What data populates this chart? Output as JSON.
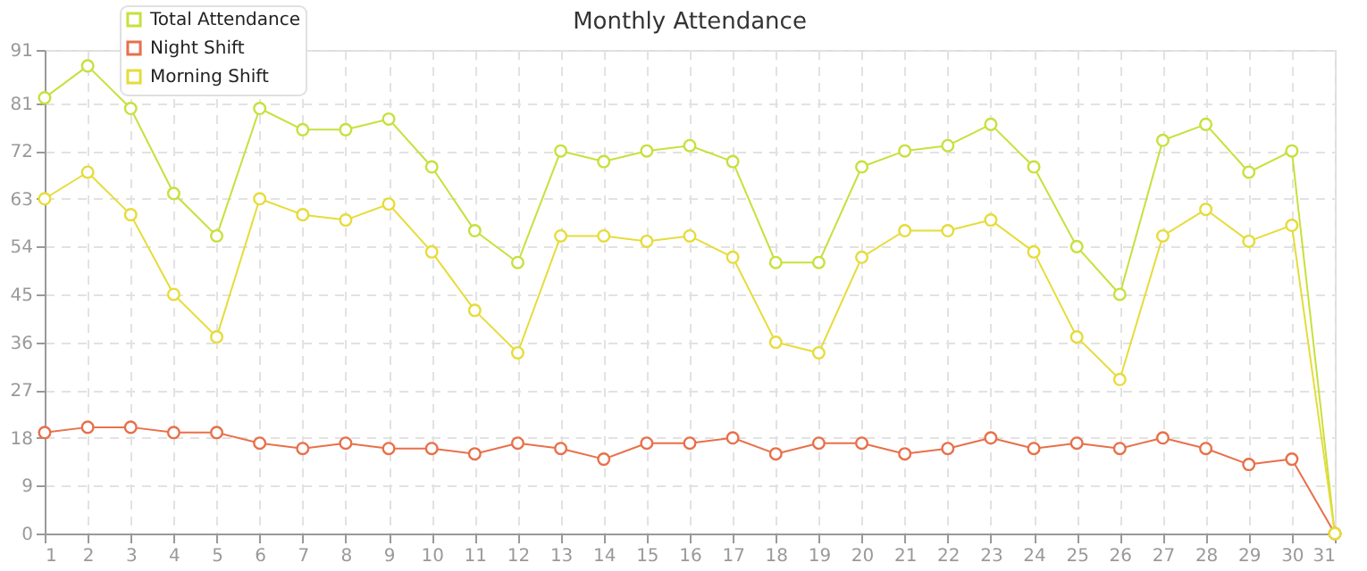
{
  "chart_data": {
    "type": "line",
    "title": "Monthly Attendance",
    "x": [
      1,
      2,
      3,
      4,
      5,
      6,
      7,
      8,
      9,
      10,
      11,
      12,
      13,
      14,
      15,
      16,
      17,
      18,
      19,
      20,
      21,
      22,
      23,
      24,
      25,
      26,
      27,
      28,
      29,
      30,
      31
    ],
    "series": [
      {
        "name": "Total Attendance",
        "color": "#c8e03c",
        "values": [
          82,
          88,
          80,
          64,
          56,
          80,
          76,
          76,
          78,
          69,
          57,
          51,
          72,
          70,
          72,
          73,
          70,
          51,
          51,
          69,
          72,
          73,
          77,
          69,
          54,
          45,
          74,
          77,
          68,
          72,
          0
        ]
      },
      {
        "name": "Night Shift",
        "color": "#e8704a",
        "values": [
          19,
          20,
          20,
          19,
          19,
          17,
          16,
          17,
          16,
          16,
          15,
          17,
          16,
          14,
          17,
          17,
          18,
          15,
          17,
          17,
          15,
          16,
          18,
          16,
          17,
          16,
          18,
          16,
          13,
          14,
          0
        ]
      },
      {
        "name": "Morning Shift",
        "color": "#e6dc3a",
        "values": [
          63,
          68,
          60,
          45,
          37,
          63,
          60,
          59,
          62,
          53,
          42,
          34,
          56,
          56,
          55,
          56,
          52,
          36,
          34,
          52,
          57,
          57,
          59,
          53,
          37,
          29,
          56,
          61,
          55,
          58,
          0
        ]
      }
    ],
    "xlim": [
      1,
      31
    ],
    "xticks": [
      1,
      2,
      3,
      4,
      5,
      6,
      7,
      8,
      9,
      10,
      11,
      12,
      13,
      14,
      15,
      16,
      17,
      18,
      19,
      20,
      21,
      22,
      23,
      24,
      25,
      26,
      27,
      28,
      29,
      30,
      31
    ],
    "ylim": [
      0,
      91
    ],
    "yticks": [
      0,
      9,
      18,
      27,
      36,
      45,
      54,
      63,
      72,
      81,
      91
    ],
    "grid": true,
    "legend": "top left",
    "marker": "circle",
    "line_style": "solid"
  }
}
